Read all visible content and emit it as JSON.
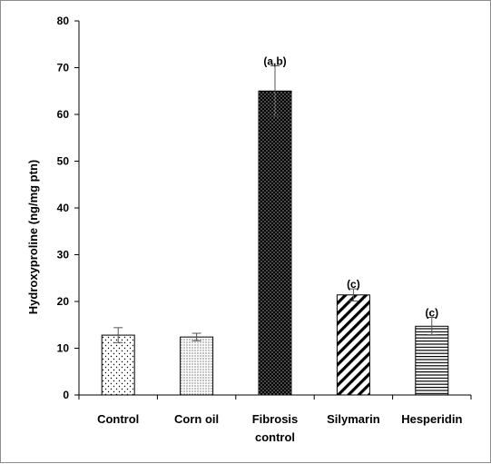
{
  "chart_data": {
    "type": "bar",
    "title": "",
    "xlabel": "",
    "ylabel": "Hydroxyproline (ng/mg ptn)",
    "ylim": [
      0,
      80
    ],
    "yticks": [
      0,
      10,
      20,
      30,
      40,
      50,
      60,
      70,
      80
    ],
    "grid": false,
    "legend": "none",
    "categories": [
      {
        "lines": [
          "Control"
        ]
      },
      {
        "lines": [
          "Corn oil"
        ]
      },
      {
        "lines": [
          "Fibrosis",
          "control"
        ]
      },
      {
        "lines": [
          "Silymarin"
        ]
      },
      {
        "lines": [
          "Hesperidin"
        ]
      }
    ],
    "values": [
      12.8,
      12.4,
      65.0,
      21.4,
      14.7
    ],
    "errors": [
      1.6,
      0.8,
      5.4,
      1.3,
      1.9
    ],
    "annotations": [
      "",
      "",
      "(a,b)",
      "(c)",
      "(c)"
    ],
    "patterns": [
      "sparse-dots",
      "dense-dots",
      "dark-dots",
      "diagonal-hatch",
      "horizontal-lines"
    ],
    "bar_edge_color": "#000000"
  }
}
